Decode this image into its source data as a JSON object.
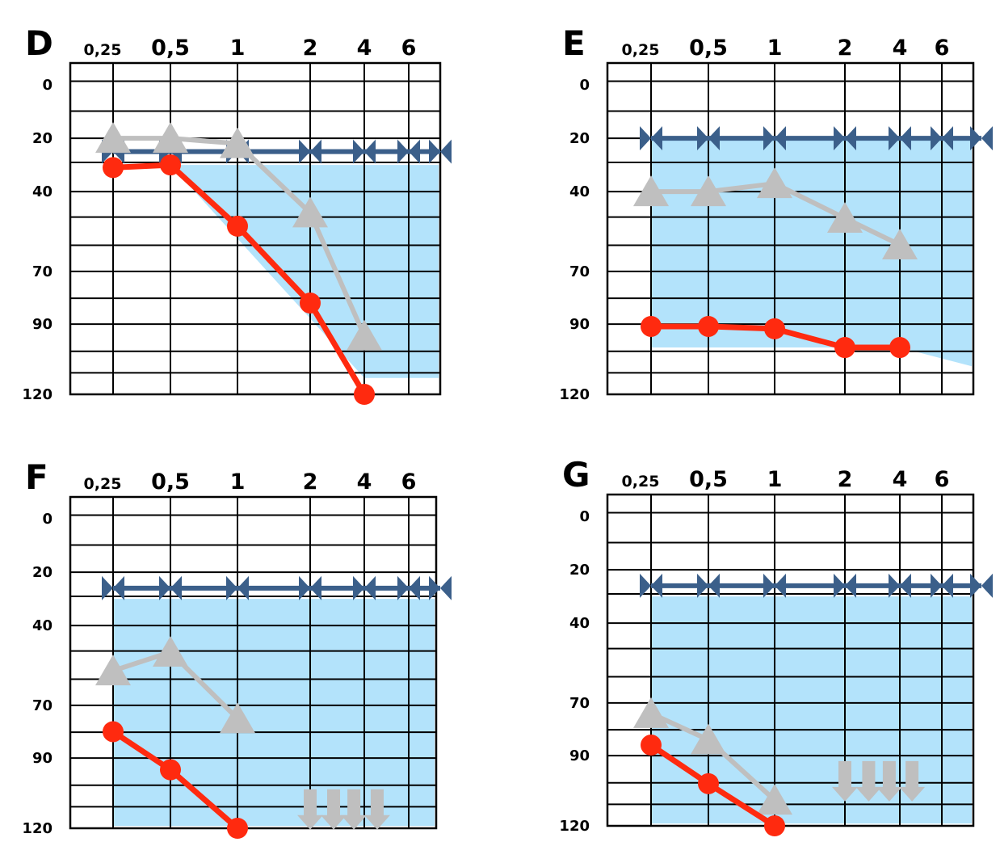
{
  "chart_data": [
    {
      "type": "line",
      "panel": "D",
      "x_tick_labels": [
        "0,25",
        "0,5",
        "1",
        "2",
        "4",
        "6"
      ],
      "y_tick_labels": [
        "0",
        "20",
        "40",
        "70",
        "90",
        "120"
      ],
      "ylim": [
        0,
        120
      ],
      "y_inverted": true,
      "shaded_region": {
        "color": "#b3e3fb",
        "boundary": [
          [
            0.5,
            30
          ],
          [
            8,
            30
          ],
          [
            8,
            113
          ],
          [
            4,
            113
          ]
        ]
      },
      "series": [
        {
          "marker": "bowtie",
          "color": "#3b5f8a",
          "x": [
            0.25,
            0.5,
            1,
            2,
            4,
            6,
            8
          ],
          "y": [
            25,
            25,
            25,
            25,
            25,
            25,
            25
          ]
        },
        {
          "marker": "triangle",
          "color": "#bfbfbf",
          "x": [
            0.25,
            0.5,
            1,
            2,
            4
          ],
          "y": [
            20,
            20,
            22,
            48,
            95
          ]
        },
        {
          "marker": "circle",
          "color": "#ff2a0f",
          "x": [
            0.25,
            0.5,
            1,
            2,
            4
          ],
          "y": [
            31,
            30,
            53,
            82,
            120
          ]
        }
      ]
    },
    {
      "type": "line",
      "panel": "E",
      "x_tick_labels": [
        "0,25",
        "0,5",
        "1",
        "2",
        "4",
        "6"
      ],
      "y_tick_labels": [
        "0",
        "20",
        "40",
        "70",
        "90",
        "120"
      ],
      "ylim": [
        0,
        120
      ],
      "y_inverted": true,
      "shaded_region": {
        "color": "#b3e3fb",
        "boundary": [
          [
            0.25,
            20
          ],
          [
            8,
            20
          ],
          [
            8,
            108
          ],
          [
            4,
            100
          ],
          [
            0.25,
            100
          ]
        ]
      },
      "series": [
        {
          "marker": "bowtie",
          "color": "#3b5f8a",
          "x": [
            0.25,
            0.5,
            1,
            2,
            4,
            6,
            8
          ],
          "y": [
            20,
            20,
            20,
            20,
            20,
            20,
            20
          ]
        },
        {
          "marker": "triangle",
          "color": "#bfbfbf",
          "x": [
            0.25,
            0.5,
            1,
            2,
            4
          ],
          "y": [
            40,
            40,
            37,
            50,
            60
          ]
        },
        {
          "marker": "circle",
          "color": "#ff2a0f",
          "x": [
            0.25,
            0.5,
            1,
            2,
            4
          ],
          "y": [
            91,
            91,
            92,
            100,
            100
          ]
        }
      ]
    },
    {
      "type": "line",
      "panel": "F",
      "x_tick_labels": [
        "0,25",
        "0,5",
        "1",
        "2",
        "4",
        "6"
      ],
      "y_tick_labels": [
        "0",
        "20",
        "40",
        "70",
        "90",
        "120"
      ],
      "ylim": [
        0,
        120
      ],
      "y_inverted": true,
      "shaded_region": {
        "color": "#b3e3fb",
        "boundary": [
          [
            0.25,
            30
          ],
          [
            8,
            30
          ],
          [
            8,
            119
          ],
          [
            0.25,
            119
          ]
        ]
      },
      "no_response_arrows": {
        "color": "#bfbfbf",
        "x": [
          2,
          2.7,
          3.5,
          4.5
        ],
        "y": 113
      },
      "series": [
        {
          "marker": "bowtie",
          "color": "#3b5f8a",
          "x": [
            0.25,
            0.5,
            1,
            2,
            4,
            6,
            8
          ],
          "y": [
            26,
            26,
            26,
            26,
            26,
            26,
            26
          ]
        },
        {
          "marker": "triangle",
          "color": "#bfbfbf",
          "x": [
            0.25,
            0.5,
            1
          ],
          "y": [
            57,
            50,
            75
          ]
        },
        {
          "marker": "circle",
          "color": "#ff2a0f",
          "x": [
            0.25,
            0.5,
            1
          ],
          "y": [
            80,
            95,
            120
          ]
        }
      ]
    },
    {
      "type": "line",
      "panel": "G",
      "x_tick_labels": [
        "0,25",
        "0,5",
        "1",
        "2",
        "4",
        "6"
      ],
      "y_tick_labels": [
        "0",
        "20",
        "40",
        "70",
        "90",
        "120"
      ],
      "ylim": [
        0,
        120
      ],
      "y_inverted": true,
      "shaded_region": {
        "color": "#b3e3fb",
        "boundary": [
          [
            0.25,
            30
          ],
          [
            8,
            30
          ],
          [
            8,
            119
          ],
          [
            0.25,
            119
          ]
        ]
      },
      "no_response_arrows": {
        "color": "#bfbfbf",
        "x": [
          2,
          2.7,
          3.5,
          4.5
        ],
        "y": 102
      },
      "series": [
        {
          "marker": "bowtie",
          "color": "#3b5f8a",
          "x": [
            0.25,
            0.5,
            1,
            2,
            4,
            6,
            8
          ],
          "y": [
            26,
            26,
            26,
            26,
            26,
            26,
            26
          ]
        },
        {
          "marker": "triangle",
          "color": "#bfbfbf",
          "x": [
            0.25,
            0.5,
            1
          ],
          "y": [
            74,
            84,
            109
          ]
        },
        {
          "marker": "circle",
          "color": "#ff2a0f",
          "x": [
            0.25,
            0.5,
            1
          ],
          "y": [
            86,
            102,
            120
          ]
        }
      ]
    }
  ]
}
